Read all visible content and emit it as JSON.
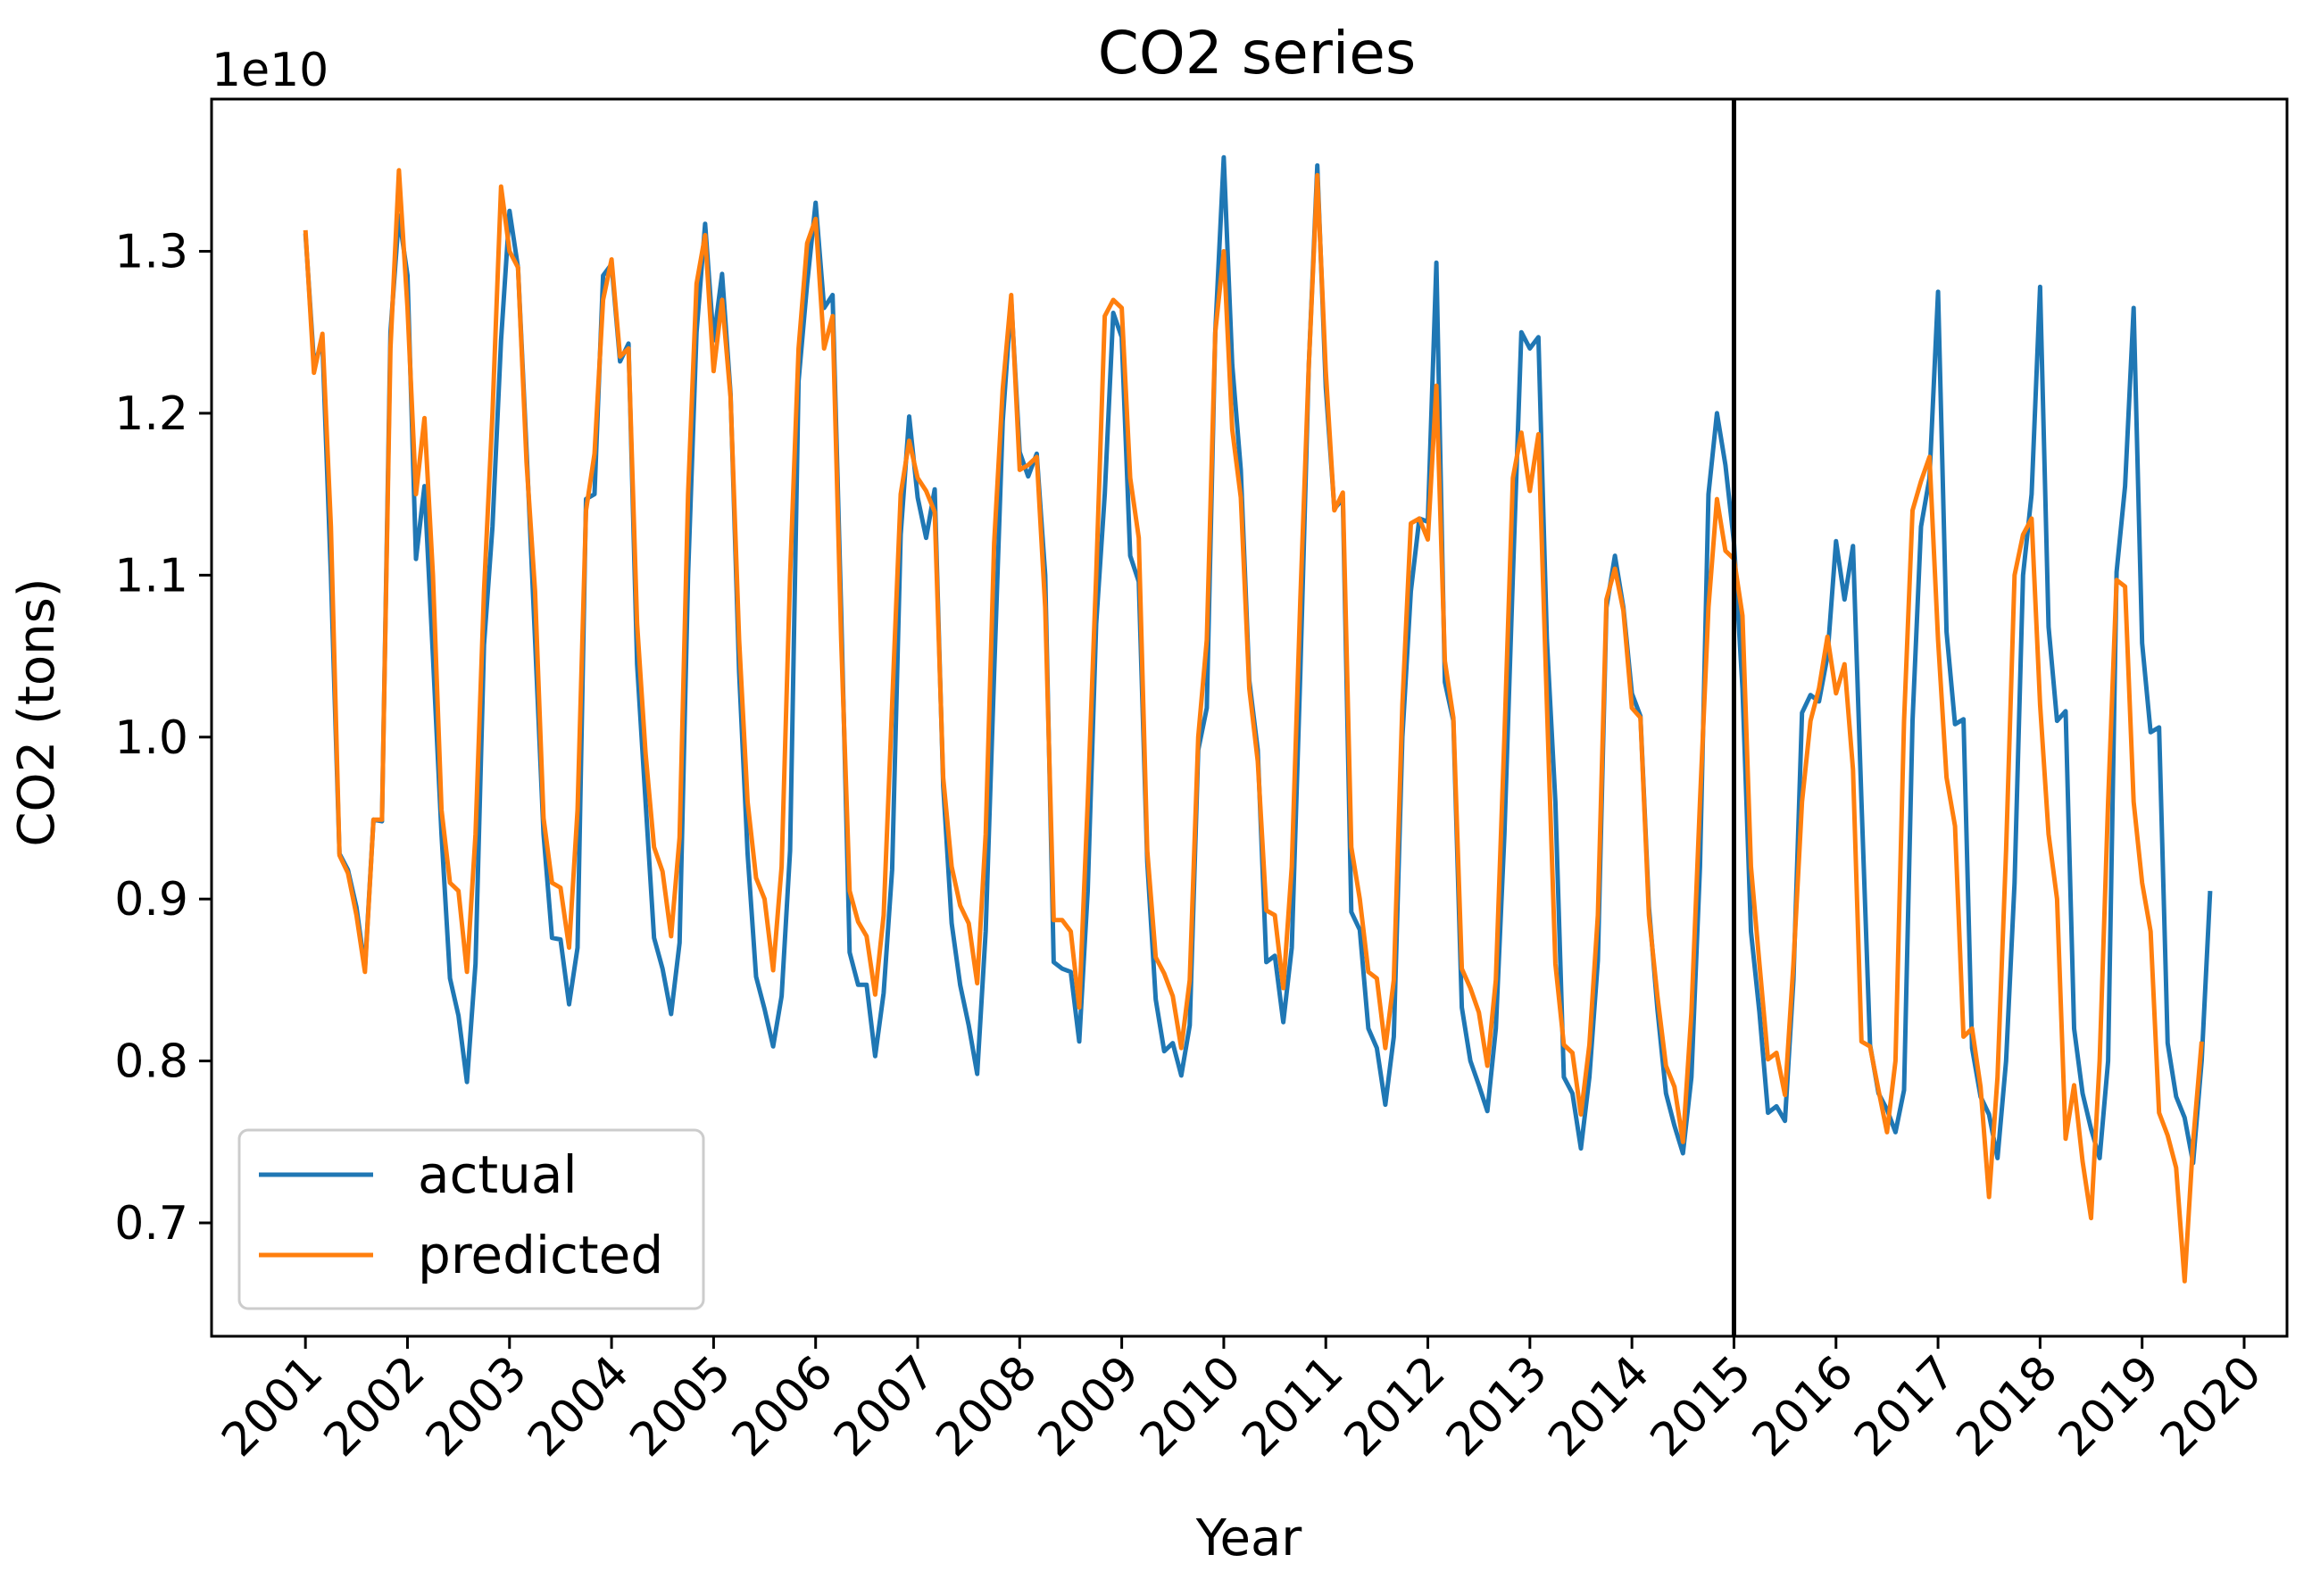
{
  "chart_data": {
    "type": "line",
    "title": "CO2 series",
    "xlabel": "Year",
    "ylabel": "CO2 (tons)",
    "y_offset_label": "1e10",
    "xlim": [
      2000.08,
      2020.42
    ],
    "ylim": [
      0.63,
      1.394
    ],
    "x_ticks": [
      2001,
      2002,
      2003,
      2004,
      2005,
      2006,
      2007,
      2008,
      2009,
      2010,
      2011,
      2012,
      2013,
      2014,
      2015,
      2016,
      2017,
      2018,
      2019,
      2020
    ],
    "x_tick_labels": [
      "2001",
      "2002",
      "2003",
      "2004",
      "2005",
      "2006",
      "2007",
      "2008",
      "2009",
      "2010",
      "2011",
      "2012",
      "2013",
      "2014",
      "2015",
      "2016",
      "2017",
      "2018",
      "2019",
      "2020"
    ],
    "y_ticks": [
      0.7,
      0.8,
      0.9,
      1.0,
      1.1,
      1.2,
      1.3
    ],
    "y_tick_labels": [
      "0.7",
      "0.8",
      "0.9",
      "1.0",
      "1.1",
      "1.2",
      "1.3"
    ],
    "y_unit_note": "y values in units of 1e10 tons",
    "x_start": 2001.0,
    "x_step": 0.0833333,
    "vertical_line_x": 2015.0,
    "legend_position": "lower-left",
    "grid": false,
    "series": [
      {
        "name": "actual",
        "color": "#1f77b4",
        "values": [
          1.311,
          1.231,
          1.243,
          1.1,
          0.928,
          0.918,
          0.895,
          0.857,
          0.949,
          0.948,
          1.25,
          1.322,
          1.285,
          1.11,
          1.155,
          1.05,
          0.94,
          0.851,
          0.828,
          0.787,
          0.86,
          1.057,
          1.13,
          1.245,
          1.325,
          1.29,
          1.178,
          1.06,
          0.94,
          0.876,
          0.875,
          0.835,
          0.87,
          1.147,
          1.15,
          1.285,
          1.292,
          1.232,
          1.243,
          1.045,
          0.96,
          0.876,
          0.857,
          0.829,
          0.873,
          1.1,
          1.25,
          1.317,
          1.245,
          1.286,
          1.212,
          1.04,
          0.928,
          0.852,
          0.832,
          0.809,
          0.84,
          0.93,
          1.22,
          1.28,
          1.33,
          1.265,
          1.273,
          1.078,
          0.867,
          0.847,
          0.847,
          0.803,
          0.842,
          0.918,
          1.125,
          1.198,
          1.148,
          1.123,
          1.153,
          0.97,
          0.885,
          0.847,
          0.822,
          0.792,
          0.88,
          1.04,
          1.195,
          1.27,
          1.176,
          1.161,
          1.175,
          1.1,
          0.861,
          0.857,
          0.855,
          0.812,
          0.905,
          1.07,
          1.15,
          1.262,
          1.247,
          1.112,
          1.096,
          0.923,
          0.838,
          0.806,
          0.811,
          0.791,
          0.822,
          0.992,
          1.018,
          1.25,
          1.358,
          1.23,
          1.165,
          1.035,
          0.992,
          0.861,
          0.865,
          0.824,
          0.87,
          1.04,
          1.23,
          1.353,
          1.216,
          1.141,
          1.147,
          0.892,
          0.881,
          0.82,
          0.808,
          0.773,
          0.815,
          1.0,
          1.09,
          1.135,
          1.133,
          1.293,
          1.034,
          1.01,
          0.833,
          0.8,
          0.785,
          0.769,
          0.82,
          0.94,
          1.1,
          1.25,
          1.24,
          1.247,
          1.06,
          0.96,
          0.79,
          0.78,
          0.746,
          0.79,
          0.862,
          1.08,
          1.112,
          1.08,
          1.027,
          1.013,
          0.895,
          0.832,
          0.78,
          0.76,
          0.743,
          0.79,
          0.92,
          1.15,
          1.2,
          1.168,
          1.12,
          1.03,
          0.88,
          0.83,
          0.768,
          0.772,
          0.763,
          0.85,
          1.015,
          1.026,
          1.022,
          1.05,
          1.121,
          1.085,
          1.118,
          0.96,
          0.81,
          0.78,
          0.77,
          0.756,
          0.782,
          1.01,
          1.13,
          1.16,
          1.275,
          1.065,
          1.008,
          1.011,
          0.808,
          0.778,
          0.767,
          0.74,
          0.8,
          0.91,
          1.1,
          1.15,
          1.278,
          1.068,
          1.01,
          1.016,
          0.82,
          0.78,
          0.758,
          0.74,
          0.8,
          1.102,
          1.155,
          1.265,
          1.058,
          1.003,
          1.006,
          0.811,
          0.778,
          0.765,
          0.737,
          0.8,
          0.905
        ]
      },
      {
        "name": "predicted",
        "color": "#ff7f0e",
        "values": [
          1.313,
          1.225,
          1.249,
          1.13,
          0.927,
          0.916,
          0.89,
          0.855,
          0.949,
          0.949,
          1.24,
          1.35,
          1.265,
          1.15,
          1.197,
          1.1,
          0.955,
          0.91,
          0.905,
          0.855,
          0.94,
          1.09,
          1.2,
          1.34,
          1.3,
          1.29,
          1.17,
          1.09,
          0.95,
          0.91,
          0.907,
          0.87,
          0.955,
          1.14,
          1.175,
          1.27,
          1.295,
          1.235,
          1.24,
          1.07,
          0.99,
          0.932,
          0.917,
          0.877,
          0.938,
          1.15,
          1.28,
          1.31,
          1.226,
          1.27,
          1.21,
          1.06,
          0.96,
          0.913,
          0.9,
          0.856,
          0.92,
          1.1,
          1.24,
          1.305,
          1.32,
          1.24,
          1.26,
          1.06,
          0.905,
          0.886,
          0.877,
          0.841,
          0.89,
          1.02,
          1.15,
          1.183,
          1.16,
          1.152,
          1.139,
          0.975,
          0.92,
          0.896,
          0.885,
          0.848,
          0.94,
          1.12,
          1.215,
          1.273,
          1.165,
          1.168,
          1.173,
          1.08,
          0.887,
          0.887,
          0.88,
          0.833,
          0.96,
          1.1,
          1.26,
          1.27,
          1.265,
          1.16,
          1.123,
          0.93,
          0.864,
          0.854,
          0.84,
          0.808,
          0.85,
          1.0,
          1.06,
          1.25,
          1.3,
          1.19,
          1.148,
          1.03,
          0.985,
          0.893,
          0.89,
          0.845,
          0.92,
          1.085,
          1.23,
          1.347,
          1.226,
          1.14,
          1.151,
          0.932,
          0.9,
          0.855,
          0.851,
          0.808,
          0.85,
          1.02,
          1.132,
          1.135,
          1.122,
          1.217,
          1.047,
          1.012,
          0.857,
          0.845,
          0.83,
          0.797,
          0.85,
          1.0,
          1.16,
          1.188,
          1.152,
          1.187,
          1.02,
          0.86,
          0.81,
          0.805,
          0.767,
          0.81,
          0.89,
          1.085,
          1.104,
          1.078,
          1.018,
          1.012,
          0.89,
          0.84,
          0.797,
          0.784,
          0.75,
          0.83,
          0.96,
          1.08,
          1.147,
          1.115,
          1.11,
          1.075,
          0.92,
          0.86,
          0.801,
          0.805,
          0.779,
          0.86,
          0.96,
          1.01,
          1.03,
          1.062,
          1.027,
          1.045,
          0.98,
          0.812,
          0.809,
          0.782,
          0.756,
          0.8,
          1.01,
          1.14,
          1.158,
          1.173,
          1.06,
          0.975,
          0.945,
          0.815,
          0.82,
          0.784,
          0.716,
          0.79,
          0.93,
          1.1,
          1.125,
          1.135,
          1.02,
          0.94,
          0.9,
          0.752,
          0.785,
          0.738,
          0.703,
          0.8,
          0.96,
          1.097,
          1.093,
          0.96,
          0.91,
          0.88,
          0.768,
          0.754,
          0.734,
          0.664,
          0.75,
          0.812
        ]
      }
    ]
  }
}
